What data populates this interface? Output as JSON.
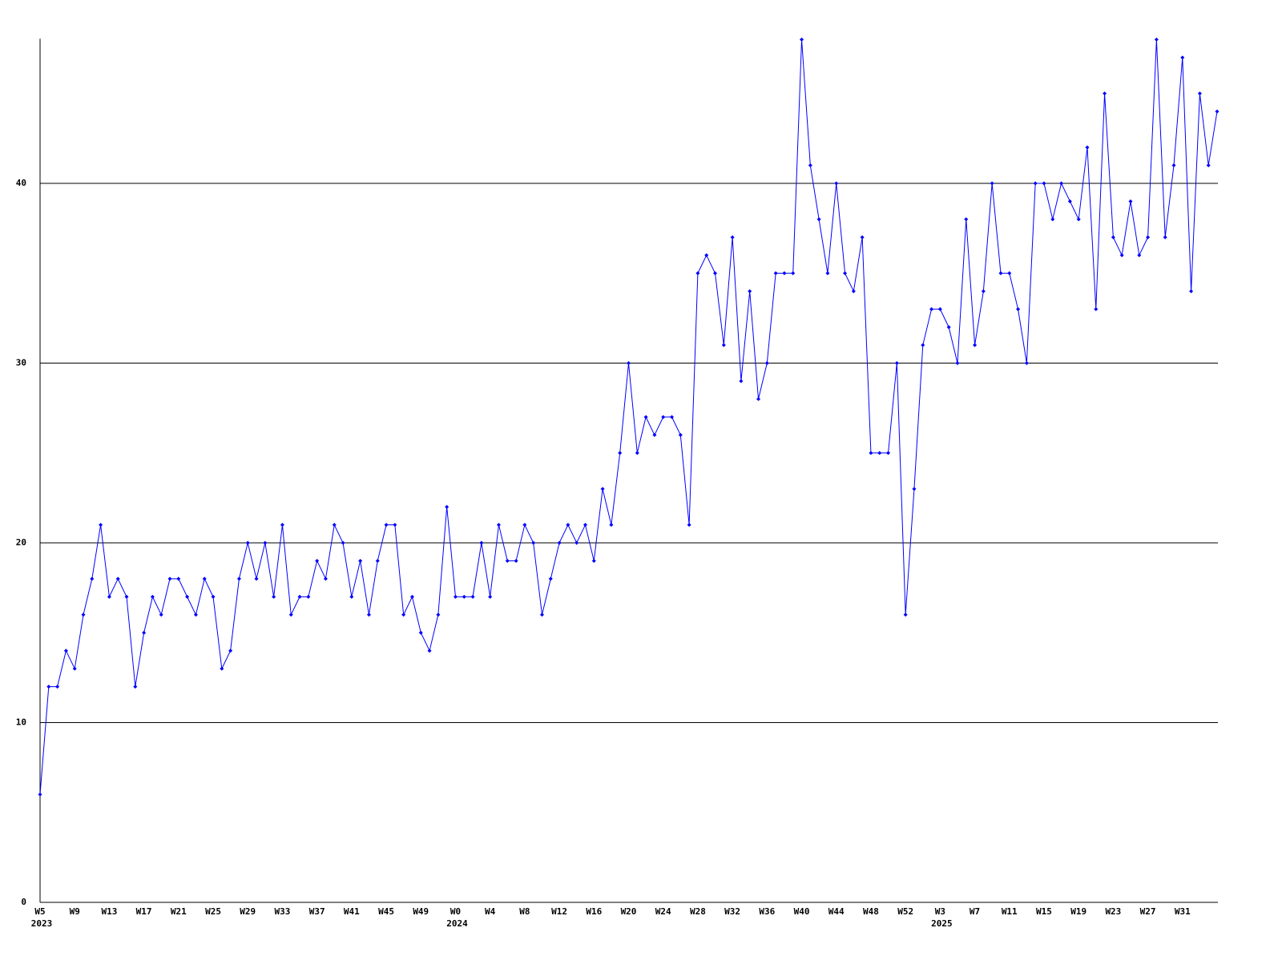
{
  "chart_data": {
    "type": "line",
    "categories": [
      "W5",
      null,
      null,
      null,
      "W9",
      null,
      null,
      null,
      "W13",
      null,
      null,
      null,
      "W17",
      null,
      null,
      null,
      "W21",
      null,
      null,
      null,
      "W25",
      null,
      null,
      null,
      "W29",
      null,
      null,
      null,
      "W33",
      null,
      null,
      null,
      "W37",
      null,
      null,
      null,
      "W41",
      null,
      null,
      null,
      "W45",
      null,
      null,
      null,
      "W49",
      null,
      null,
      null,
      "W0",
      null,
      null,
      null,
      "W4",
      null,
      null,
      null,
      "W8",
      null,
      null,
      null,
      "W12",
      null,
      null,
      null,
      "W16",
      null,
      null,
      null,
      "W20",
      null,
      null,
      null,
      "W24",
      null,
      null,
      null,
      "W28",
      null,
      null,
      null,
      "W32",
      null,
      null,
      null,
      "W36",
      null,
      null,
      null,
      "W40",
      null,
      null,
      null,
      "W44",
      null,
      null,
      null,
      "W48",
      null,
      null,
      null,
      "W52",
      null,
      null,
      null,
      "W3",
      null,
      null,
      null,
      "W7",
      null,
      null,
      null,
      "W11",
      null,
      null,
      null,
      "W15",
      null,
      null,
      null,
      "W19",
      null,
      null,
      null,
      "W23",
      null,
      null,
      null,
      "W27",
      null,
      null,
      null,
      "W31",
      null,
      null,
      null,
      null
    ],
    "year_labels": [
      "2023",
      null,
      null,
      null,
      null,
      null,
      null,
      null,
      null,
      null,
      null,
      null,
      null,
      null,
      null,
      null,
      null,
      null,
      null,
      null,
      null,
      null,
      null,
      null,
      null,
      null,
      null,
      null,
      null,
      null,
      null,
      null,
      null,
      null,
      null,
      null,
      null,
      null,
      null,
      null,
      null,
      null,
      null,
      null,
      null,
      null,
      null,
      null,
      "2024",
      null,
      null,
      null,
      null,
      null,
      null,
      null,
      null,
      null,
      null,
      null,
      null,
      null,
      null,
      null,
      null,
      null,
      null,
      null,
      null,
      null,
      null,
      null,
      null,
      null,
      null,
      null,
      null,
      null,
      null,
      null,
      null,
      null,
      null,
      null,
      null,
      null,
      null,
      null,
      null,
      null,
      null,
      null,
      null,
      null,
      null,
      null,
      null,
      null,
      null,
      null,
      null,
      null,
      null,
      null,
      "2025",
      null,
      null,
      null,
      null,
      null,
      null,
      null,
      null,
      null,
      null,
      null,
      null,
      null,
      null,
      null,
      null,
      null,
      null,
      null,
      null,
      null,
      null,
      null,
      null,
      null,
      null,
      null,
      null,
      null,
      null,
      null,
      null
    ],
    "values": [
      6,
      12,
      12,
      14,
      13,
      16,
      18,
      21,
      17,
      18,
      17,
      12,
      15,
      17,
      16,
      18,
      18,
      17,
      16,
      18,
      17,
      13,
      14,
      18,
      20,
      18,
      20,
      17,
      21,
      16,
      17,
      17,
      19,
      18,
      21,
      20,
      17,
      19,
      16,
      19,
      21,
      21,
      16,
      17,
      15,
      14,
      16,
      22,
      17,
      17,
      17,
      20,
      17,
      21,
      19,
      19,
      21,
      20,
      16,
      18,
      20,
      21,
      20,
      21,
      19,
      23,
      21,
      25,
      30,
      25,
      27,
      26,
      27,
      27,
      26,
      21,
      35,
      36,
      35,
      31,
      37,
      29,
      34,
      28,
      30,
      35,
      35,
      35,
      48,
      41,
      38,
      35,
      40,
      35,
      34,
      37,
      25,
      25,
      25,
      30,
      16,
      23,
      31,
      33,
      33,
      32,
      30,
      38,
      31,
      34,
      40,
      35,
      35,
      33,
      30,
      40,
      40,
      38,
      40,
      39,
      38,
      42,
      33,
      45,
      37,
      36,
      39,
      36,
      37,
      48,
      37,
      41,
      47,
      34,
      45,
      41,
      44
    ],
    "color": "#0000ff",
    "ylim": [
      0,
      48
    ],
    "yticks": [
      0,
      10,
      20,
      30,
      40
    ],
    "grid": true
  }
}
